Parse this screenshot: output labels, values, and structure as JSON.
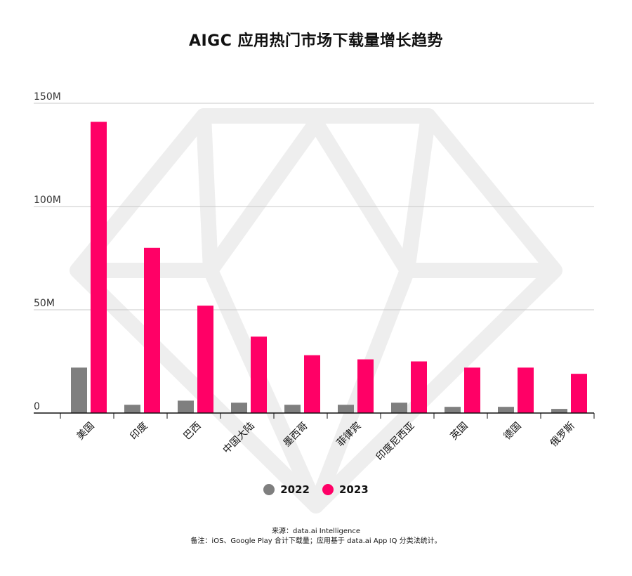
{
  "chart_data": {
    "type": "bar",
    "title": "AIGC 应用热门市场下载量增长趋势",
    "categories": [
      "美国",
      "印度",
      "巴西",
      "中国大陆",
      "墨西哥",
      "菲律宾",
      "印度尼西亚",
      "英国",
      "德国",
      "俄罗斯"
    ],
    "series": [
      {
        "name": "2022",
        "color": "#7f7f7f",
        "values": [
          22,
          4,
          6,
          5,
          4,
          4,
          5,
          3,
          3,
          2
        ]
      },
      {
        "name": "2023",
        "color": "#ff0066",
        "values": [
          141,
          80,
          52,
          37,
          28,
          26,
          25,
          22,
          22,
          19
        ]
      }
    ],
    "yticks": [
      "0",
      "50M",
      "100M",
      "150M"
    ],
    "ylim": [
      0,
      150
    ],
    "grid": true,
    "legend_position": "bottom-center"
  },
  "footer": {
    "source": "来源：data.ai Intelligence",
    "note": "备注：iOS、Google Play 合计下载量；应用基于 data.ai App IQ 分类法统计。"
  }
}
